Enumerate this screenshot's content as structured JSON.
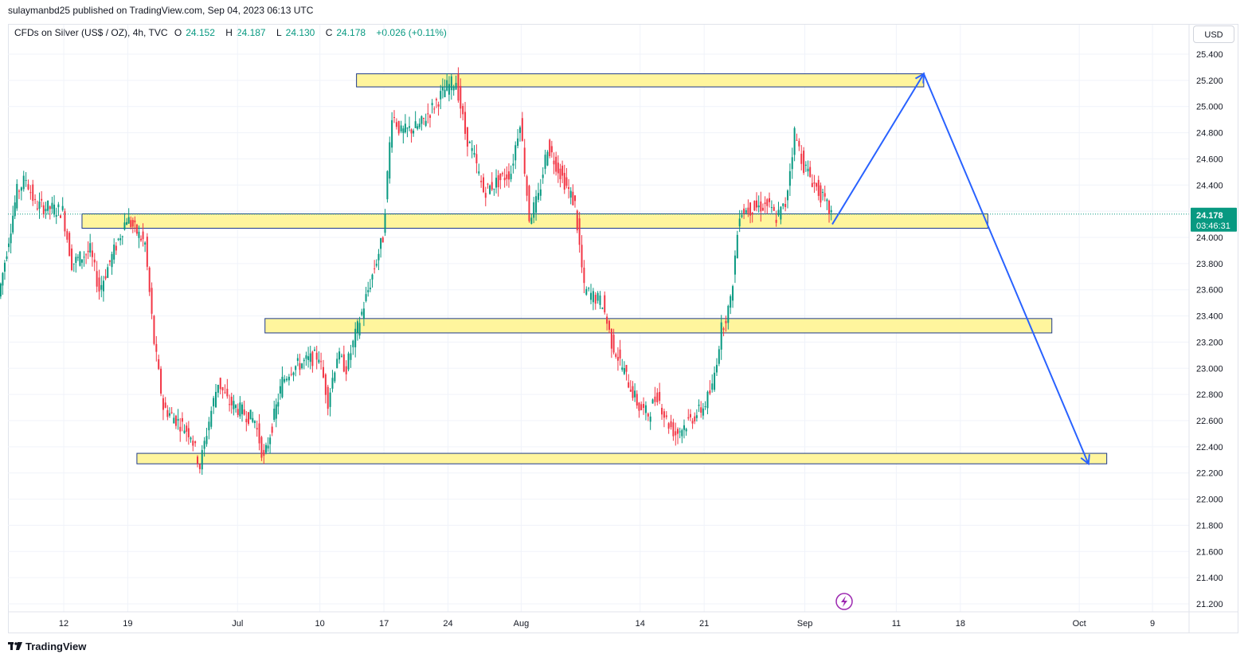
{
  "header": {
    "publish_text": "sulaymanbd25 published on TradingView.com, Sep 04, 2023 06:13 UTC",
    "symbol": "CFDs on Silver (US$ / OZ), 4h, TVC",
    "open_label": "O",
    "open_value": "24.152",
    "high_label": "H",
    "high_value": "24.187",
    "low_label": "L",
    "low_value": "24.130",
    "close_label": "C",
    "close_value": "24.178",
    "change": "+0.026 (+0.11%)"
  },
  "currency_button": "USD",
  "footer": {
    "brand": "TradingView"
  },
  "colors": {
    "up": "#089981",
    "down": "#f23645",
    "zone_fill": "#fff59d",
    "zone_stroke": "#1e3a8a",
    "projection": "#2962ff",
    "price_label_bg": "#089981",
    "grid": "#f0f3fa"
  },
  "chart_data": {
    "type": "candlestick",
    "title": "",
    "timeframe": "4h",
    "ylim": [
      21.1,
      25.5
    ],
    "y_ticks": [
      "25.400",
      "25.200",
      "25.000",
      "24.800",
      "24.600",
      "24.400",
      "24.200",
      "24.000",
      "23.800",
      "23.600",
      "23.400",
      "23.200",
      "23.000",
      "22.800",
      "22.600",
      "22.400",
      "22.200",
      "22.000",
      "21.800",
      "21.600",
      "21.400",
      "21.200"
    ],
    "x_ticks": [
      "12",
      "19",
      "Jul",
      "10",
      "17",
      "24",
      "Aug",
      "14",
      "21",
      "Sep",
      "11",
      "18",
      "Oct",
      "9"
    ],
    "last_price": "24.178",
    "countdown": "03:46:31",
    "price_path_anchors": [
      [
        "2023-06-05",
        23.55
      ],
      [
        "2023-06-07",
        24.35
      ],
      [
        "2023-06-08",
        24.45
      ],
      [
        "2023-06-09",
        24.25
      ],
      [
        "2023-06-12",
        24.2
      ],
      [
        "2023-06-13",
        23.8
      ],
      [
        "2023-06-15",
        23.9
      ],
      [
        "2023-06-16",
        23.6
      ],
      [
        "2023-06-19",
        24.15
      ],
      [
        "2023-06-21",
        23.95
      ],
      [
        "2023-06-22",
        23.2
      ],
      [
        "2023-06-23",
        22.7
      ],
      [
        "2023-06-26",
        22.5
      ],
      [
        "2023-06-27",
        22.25
      ],
      [
        "2023-06-28",
        22.6
      ],
      [
        "2023-06-29",
        22.9
      ],
      [
        "2023-06-30",
        22.75
      ],
      [
        "2023-07-03",
        22.6
      ],
      [
        "2023-07-04",
        22.3
      ],
      [
        "2023-07-06",
        22.9
      ],
      [
        "2023-07-07",
        23.0
      ],
      [
        "2023-07-10",
        23.1
      ],
      [
        "2023-07-11",
        22.75
      ],
      [
        "2023-07-12",
        23.1
      ],
      [
        "2023-07-13",
        23.0
      ],
      [
        "2023-07-14",
        23.25
      ],
      [
        "2023-07-17",
        24.0
      ],
      [
        "2023-07-18",
        24.95
      ],
      [
        "2023-07-19",
        24.8
      ],
      [
        "2023-07-21",
        24.85
      ],
      [
        "2023-07-24",
        25.15
      ],
      [
        "2023-07-25",
        25.2
      ],
      [
        "2023-07-26",
        24.8
      ],
      [
        "2023-07-27",
        24.6
      ],
      [
        "2023-07-28",
        24.35
      ],
      [
        "2023-07-31",
        24.5
      ],
      [
        "2023-08-01",
        24.9
      ],
      [
        "2023-08-02",
        24.15
      ],
      [
        "2023-08-03",
        24.3
      ],
      [
        "2023-08-04",
        24.7
      ],
      [
        "2023-08-07",
        24.25
      ],
      [
        "2023-08-08",
        23.6
      ],
      [
        "2023-08-09",
        23.55
      ],
      [
        "2023-08-10",
        23.5
      ],
      [
        "2023-08-11",
        23.2
      ],
      [
        "2023-08-14",
        22.7
      ],
      [
        "2023-08-15",
        22.65
      ],
      [
        "2023-08-16",
        22.8
      ],
      [
        "2023-08-17",
        22.6
      ],
      [
        "2023-08-18",
        22.5
      ],
      [
        "2023-08-21",
        22.7
      ],
      [
        "2023-08-22",
        22.85
      ],
      [
        "2023-08-23",
        23.3
      ],
      [
        "2023-08-24",
        23.5
      ],
      [
        "2023-08-25",
        24.2
      ],
      [
        "2023-08-28",
        24.25
      ],
      [
        "2023-08-29",
        24.15
      ],
      [
        "2023-08-30",
        24.25
      ],
      [
        "2023-08-31",
        24.8
      ],
      [
        "2023-09-01",
        24.55
      ],
      [
        "2023-09-04",
        24.18
      ]
    ],
    "zones": [
      {
        "start": "2023-07-14",
        "end": "2023-09-14",
        "top": 25.25,
        "bottom": 25.15
      },
      {
        "start": "2023-06-14",
        "end": "2023-09-21",
        "top": 24.18,
        "bottom": 24.07
      },
      {
        "start": "2023-07-04",
        "end": "2023-09-28",
        "top": 23.38,
        "bottom": 23.27
      },
      {
        "start": "2023-06-20",
        "end": "2023-10-04",
        "top": 22.35,
        "bottom": 22.27
      }
    ],
    "projection": [
      [
        "2023-09-04",
        24.1
      ],
      [
        "2023-09-14",
        25.25
      ],
      [
        "2023-10-02",
        22.27
      ]
    ]
  }
}
